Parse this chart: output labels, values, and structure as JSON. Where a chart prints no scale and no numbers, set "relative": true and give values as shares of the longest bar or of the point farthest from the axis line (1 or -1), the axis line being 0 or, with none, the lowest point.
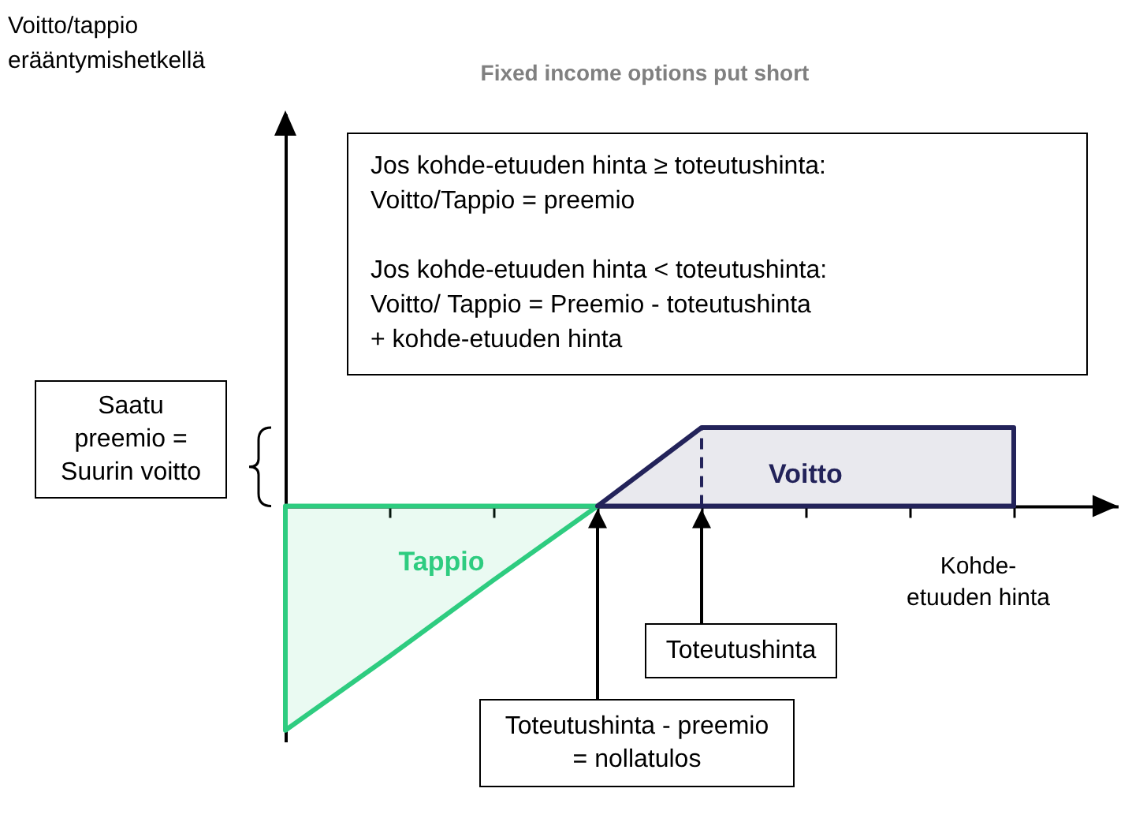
{
  "chart_data": {
    "type": "area",
    "title": "Fixed income options put short",
    "xlabel": "Kohde-etuuden hinta",
    "relative": true,
    "categories": [
      null,
      null,
      null,
      null,
      null,
      null,
      null,
      null
    ],
    "series": [
      {
        "name": "Tappio",
        "color": "#2ecc80",
        "values": [
          -1,
          -0.67,
          -0.33,
          0,
          null,
          null,
          null,
          null
        ]
      },
      {
        "name": "Voitto",
        "color": "#23235a",
        "values": [
          null,
          null,
          null,
          0,
          0.35,
          0.35,
          0.35,
          0.35
        ]
      }
    ],
    "annotations": [
      "Jos kohde-etuuden hinta ≥ toteutushinta:\nVoitto/Tappio = preemio\n\nJos kohde-etuuden hinta < toteutushinta:\nVoitto/ Tappio = Preemio - toteutushinta\n+ kohde-etuuden hinta",
      "Saatu preemio = Suurin voitto",
      "Toteutushinta",
      "Toteutushinta - preemio = nollatulos",
      "Voitto/tappio erääntymishetkellä"
    ]
  }
}
